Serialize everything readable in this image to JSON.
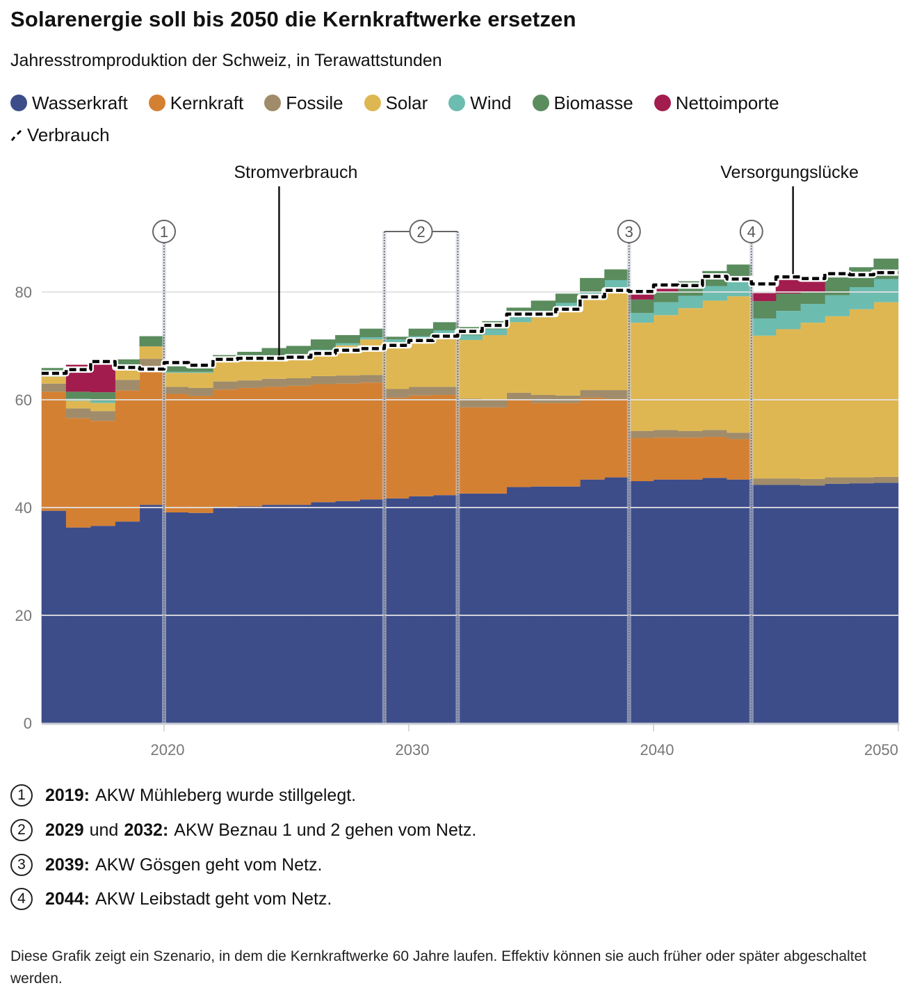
{
  "title": "Solarenergie soll bis 2050 die Kernkraftwerke ersetzen",
  "subtitle": "Jahresstromproduktion der Schweiz, in Terawattstunden",
  "legend": [
    {
      "label": "Wasserkraft",
      "color": "#3d4d8a"
    },
    {
      "label": "Kernkraft",
      "color": "#d48033"
    },
    {
      "label": "Fossile",
      "color": "#a08c6a"
    },
    {
      "label": "Solar",
      "color": "#dfb752"
    },
    {
      "label": "Wind",
      "color": "#6dbcb0"
    },
    {
      "label": "Biomasse",
      "color": "#5a8c5e"
    },
    {
      "label": "Nettoimporte",
      "color": "#a21d4d"
    }
  ],
  "legend_line": {
    "label": "Verbrauch",
    "icon": "dashed-line-icon"
  },
  "chart_data": {
    "type": "area",
    "stacked": true,
    "step": true,
    "title": "Solarenergie soll bis 2050 die Kernkraftwerke ersetzen",
    "subtitle": "Jahresstromproduktion der Schweiz, in Terawattstunden",
    "xlim": [
      2015,
      2050
    ],
    "ylim": [
      0,
      90
    ],
    "y_ticks": [
      "0",
      "20",
      "40",
      "60",
      "80"
    ],
    "x_ticks": [
      "2020",
      "2030",
      "2040",
      "2050"
    ],
    "grid": "horizontal",
    "years": [
      2015,
      2016,
      2017,
      2018,
      2019,
      2020,
      2021,
      2022,
      2023,
      2024,
      2025,
      2026,
      2027,
      2028,
      2029,
      2030,
      2031,
      2032,
      2033,
      2034,
      2035,
      2036,
      2037,
      2038,
      2039,
      2040,
      2041,
      2042,
      2043,
      2044,
      2045,
      2046,
      2047,
      2048,
      2049
    ],
    "series": [
      {
        "name": "Wasserkraft",
        "color": "#3d4d8a",
        "values": [
          39.4,
          36.3,
          36.6,
          37.4,
          40.5,
          39.1,
          39.0,
          40.0,
          40.2,
          40.5,
          40.5,
          41.0,
          41.2,
          41.5,
          41.7,
          42.1,
          42.3,
          42.6,
          42.6,
          43.8,
          43.9,
          43.9,
          45.2,
          45.6,
          44.9,
          45.2,
          45.2,
          45.5,
          45.2,
          44.2,
          44.2,
          44.1,
          44.4,
          44.5,
          44.6
        ]
      },
      {
        "name": "Kernkraft",
        "color": "#d48033",
        "values": [
          22.1,
          20.3,
          19.5,
          24.3,
          25.7,
          22.0,
          21.7,
          21.9,
          22.0,
          21.9,
          22.1,
          21.9,
          21.8,
          21.7,
          18.7,
          18.7,
          18.6,
          16.0,
          16.0,
          16.2,
          15.5,
          15.5,
          15.2,
          14.6,
          8.0,
          7.8,
          7.8,
          7.6,
          7.5,
          0,
          0,
          0,
          0,
          0,
          0
        ]
      },
      {
        "name": "Fossile",
        "color": "#a08c6a",
        "values": [
          1.5,
          1.8,
          1.8,
          2.0,
          1.4,
          1.3,
          1.5,
          1.5,
          1.4,
          1.5,
          1.4,
          1.5,
          1.5,
          1.4,
          1.6,
          1.6,
          1.5,
          1.6,
          1.4,
          1.3,
          1.5,
          1.4,
          1.4,
          1.6,
          1.3,
          1.4,
          1.2,
          1.3,
          1.2,
          1.2,
          1.2,
          1.2,
          1.2,
          1.1,
          1.1
        ]
      },
      {
        "name": "Solar",
        "color": "#dfb752",
        "values": [
          1.3,
          1.4,
          1.5,
          1.9,
          2.3,
          2.6,
          2.8,
          3.8,
          3.9,
          4.0,
          4.1,
          4.6,
          5.6,
          6.6,
          8.7,
          9.0,
          9.9,
          10.9,
          12.0,
          13.1,
          14.4,
          16.4,
          17.1,
          18.2,
          20.1,
          21.3,
          22.8,
          24.0,
          25.3,
          26.5,
          27.7,
          29.0,
          29.9,
          31.2,
          32.4
        ]
      },
      {
        "name": "Wind",
        "color": "#6dbcb0",
        "values": [
          0,
          0.4,
          0.4,
          0,
          0,
          0.2,
          0.2,
          0.4,
          0.4,
          0.3,
          0.3,
          0.3,
          0.4,
          0.4,
          0.5,
          0.4,
          0.6,
          0.9,
          1.1,
          0.9,
          1.2,
          0.8,
          1.1,
          2.2,
          1.8,
          2.4,
          2.3,
          2.7,
          2.7,
          3.2,
          3.4,
          3.5,
          3.9,
          4.1,
          4.3
        ]
      },
      {
        "name": "Biomasse",
        "color": "#5a8c5e",
        "values": [
          1.6,
          1.3,
          1.6,
          1.9,
          1.9,
          1.0,
          0.8,
          0.7,
          1.0,
          1.4,
          1.6,
          1.9,
          1.5,
          1.6,
          0.5,
          1.4,
          1.5,
          1.5,
          1.5,
          1.8,
          1.9,
          1.7,
          2.6,
          2.0,
          2.5,
          1.9,
          2.7,
          2.8,
          3.2,
          3.2,
          3.2,
          2.2,
          3.3,
          3.7,
          3.8
        ]
      },
      {
        "name": "Nettoimporte",
        "color": "#a21d4d",
        "values": [
          0,
          5.0,
          5.1,
          0,
          0,
          0,
          0,
          0,
          0,
          0,
          0,
          0,
          0,
          0,
          0,
          0,
          0,
          0,
          0,
          0,
          0,
          0,
          0,
          0,
          1.0,
          0.6,
          0,
          0,
          0,
          1.5,
          2.7,
          1.9,
          0,
          0,
          0
        ]
      }
    ],
    "line": {
      "name": "Verbrauch",
      "color": "#000000",
      "values": [
        64.9,
        65.6,
        67.1,
        66.0,
        65.7,
        66.9,
        66.4,
        67.5,
        67.7,
        67.7,
        67.9,
        68.6,
        69.2,
        69.5,
        70.1,
        71.0,
        71.8,
        72.7,
        73.8,
        75.9,
        75.9,
        76.8,
        79.1,
        80.3,
        80.1,
        81.3,
        81.2,
        82.9,
        82.4,
        81.5,
        82.8,
        82.5,
        83.4,
        83.2,
        83.6
      ]
    },
    "annotations": [
      {
        "label": "Stromverbrauch",
        "x": 2024.7
      },
      {
        "label": "Versorgungslücke",
        "x": 2045.7
      }
    ],
    "markers": [
      {
        "num": "1",
        "x": [
          2020
        ]
      },
      {
        "num": "2",
        "x": [
          2029,
          2032
        ]
      },
      {
        "num": "3",
        "x": [
          2039
        ]
      },
      {
        "num": "4",
        "x": [
          2044
        ]
      }
    ]
  },
  "notes": [
    {
      "num": "1",
      "bold": "2019:",
      "text": "AKW Mühleberg wurde stillgelegt."
    },
    {
      "num": "2",
      "bold": "2029",
      "mid": "und",
      "bold2": "2032:",
      "text": "AKW Beznau 1 und 2 gehen vom Netz."
    },
    {
      "num": "3",
      "bold": "2039:",
      "text": "AKW Gösgen geht vom Netz."
    },
    {
      "num": "4",
      "bold": "2044:",
      "text": "AKW Leibstadt geht vom Netz."
    }
  ],
  "footer": "Diese Grafik zeigt ein Szenario, in dem die Kernkraftwerke 60 Jahre laufen. Effektiv können sie auch früher oder später abgeschaltet werden."
}
